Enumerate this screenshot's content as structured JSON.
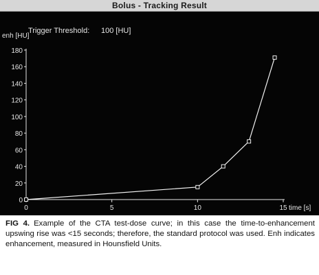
{
  "figure": {
    "title": "Bolus - Tracking Result",
    "threshold_label": "Trigger Threshold:",
    "threshold_value": "100 [HU]"
  },
  "caption": {
    "label": "FIG 4.",
    "text": "Example of the CTA test-dose curve; in this case the time-to-enhancement upswing rise was <15 seconds; therefore, the standard protocol was used. Enh indicates enhancement, measured in Hounsfield Units."
  },
  "colors": {
    "figure_background": "#050505",
    "title_bar": "#d6d6d6",
    "curve": "#f2f2f2",
    "axes": "#e6e6e6"
  },
  "chart_data": {
    "type": "line",
    "title": "Bolus - Tracking Result",
    "ylabel": "enh [HU]",
    "xlabel": "time [s]",
    "xlim": [
      0,
      15
    ],
    "ylim": [
      0,
      180
    ],
    "x_ticks": [
      0,
      5,
      10,
      15
    ],
    "y_ticks": [
      0,
      20,
      40,
      60,
      80,
      100,
      120,
      140,
      160,
      180
    ],
    "grid": false,
    "series": [
      {
        "x": [
          0,
          10,
          11.5,
          13,
          14.5
        ],
        "y": [
          0,
          15,
          40,
          70,
          171
        ],
        "markers": "square"
      }
    ]
  }
}
